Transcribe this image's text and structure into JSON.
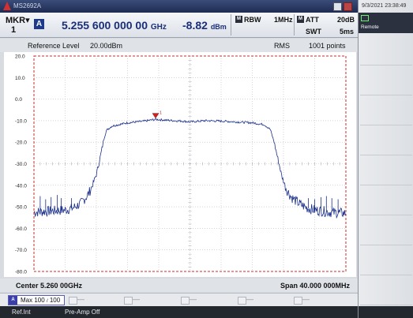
{
  "titlebar": {
    "app_name": "MS2692A"
  },
  "marker": {
    "label": "MKR",
    "number": "1",
    "trace": "A",
    "frequency": "5.255 600 000 00",
    "frequency_unit": "GHz",
    "level": "-8.82",
    "level_unit": "dBm"
  },
  "settings": {
    "rbw_label": "RBW",
    "rbw_value": "1MHz",
    "att_label": "ATT",
    "att_value": "20dB",
    "swt_label": "SWT",
    "swt_value": "5ms",
    "mark_symbol": "M"
  },
  "info": {
    "ref_label": "Reference Level",
    "ref_value": "20.00dBm",
    "detector": "RMS",
    "points": "1001 points"
  },
  "axis": {
    "y_ticks": [
      "20.0",
      "10.0",
      "0.0",
      "-10.0",
      "-20.0",
      "-30.0",
      "-40.0",
      "-50.0",
      "-60.0",
      "-70.0",
      "-80.0"
    ],
    "center": "Center 5.260 00GHz",
    "span": "Span 40.000 000MHz"
  },
  "chart_data": {
    "type": "line",
    "x_range_mhz": [
      5240,
      5280
    ],
    "ylim": [
      -80,
      20
    ],
    "trace_color": "#1a2f8c",
    "grid_color": "#b7bbc2",
    "border_color": "#cc2a2a",
    "marker_mhz": 5255.6,
    "marker_dbm": -8.82,
    "series": [
      {
        "values": [
          [
            5240,
            -52.5
          ],
          [
            5242,
            -52.0
          ],
          [
            5244,
            -51.5
          ],
          [
            5245,
            -50.5
          ],
          [
            5246,
            -48.5
          ],
          [
            5247,
            -44.0
          ],
          [
            5247.5,
            -40.0
          ],
          [
            5248,
            -35.0
          ],
          [
            5248.5,
            -27.0
          ],
          [
            5249,
            -18.0
          ],
          [
            5249.3,
            -14.5
          ],
          [
            5250,
            -12.5
          ],
          [
            5252,
            -11.0
          ],
          [
            5254,
            -10.3
          ],
          [
            5255.6,
            -9.4
          ],
          [
            5257,
            -9.8
          ],
          [
            5259,
            -10.2
          ],
          [
            5260,
            -10.6
          ],
          [
            5262,
            -10.0
          ],
          [
            5264,
            -10.2
          ],
          [
            5266,
            -10.6
          ],
          [
            5268,
            -11.0
          ],
          [
            5269.5,
            -11.8
          ],
          [
            5270.3,
            -14.0
          ],
          [
            5270.8,
            -20.0
          ],
          [
            5271.3,
            -28.0
          ],
          [
            5271.8,
            -36.0
          ],
          [
            5272.4,
            -42.0
          ],
          [
            5273,
            -45.5
          ],
          [
            5274,
            -48.5
          ],
          [
            5275,
            -50.5
          ],
          [
            5276,
            -51.5
          ],
          [
            5278,
            -52.5
          ],
          [
            5280,
            -53.0
          ]
        ]
      }
    ],
    "spurs_left": [
      [
        5240.8,
        -45.0
      ],
      [
        5241.5,
        -46.5
      ],
      [
        5242.2,
        -45.5
      ],
      [
        5243,
        -44.5
      ],
      [
        5243.5,
        -46.0
      ],
      [
        5244.8,
        -46.0
      ]
    ],
    "spurs_right": [
      [
        5275.2,
        -46.0
      ],
      [
        5276,
        -46.5
      ],
      [
        5276.8,
        -45.5
      ],
      [
        5277.5,
        -45.0
      ],
      [
        5278.2,
        -46.0
      ],
      [
        5279,
        -46.5
      ]
    ]
  },
  "trace_bar": {
    "trace_icon": "A",
    "mode": "Max",
    "count": "100",
    "sep": "/",
    "total": "100",
    "slots": [
      {
        "id": "B",
        "value": "—"
      },
      {
        "id": "C",
        "value": "—"
      },
      {
        "id": "D",
        "value": "—"
      },
      {
        "id": "E",
        "value": "—"
      },
      {
        "id": "F",
        "value": "—"
      }
    ]
  },
  "status": {
    "ref": "Ref.Int",
    "preamp": "Pre-Amp Off"
  },
  "side": {
    "datetime": "9/3/2021 23:38:49",
    "remote": "Remote"
  }
}
